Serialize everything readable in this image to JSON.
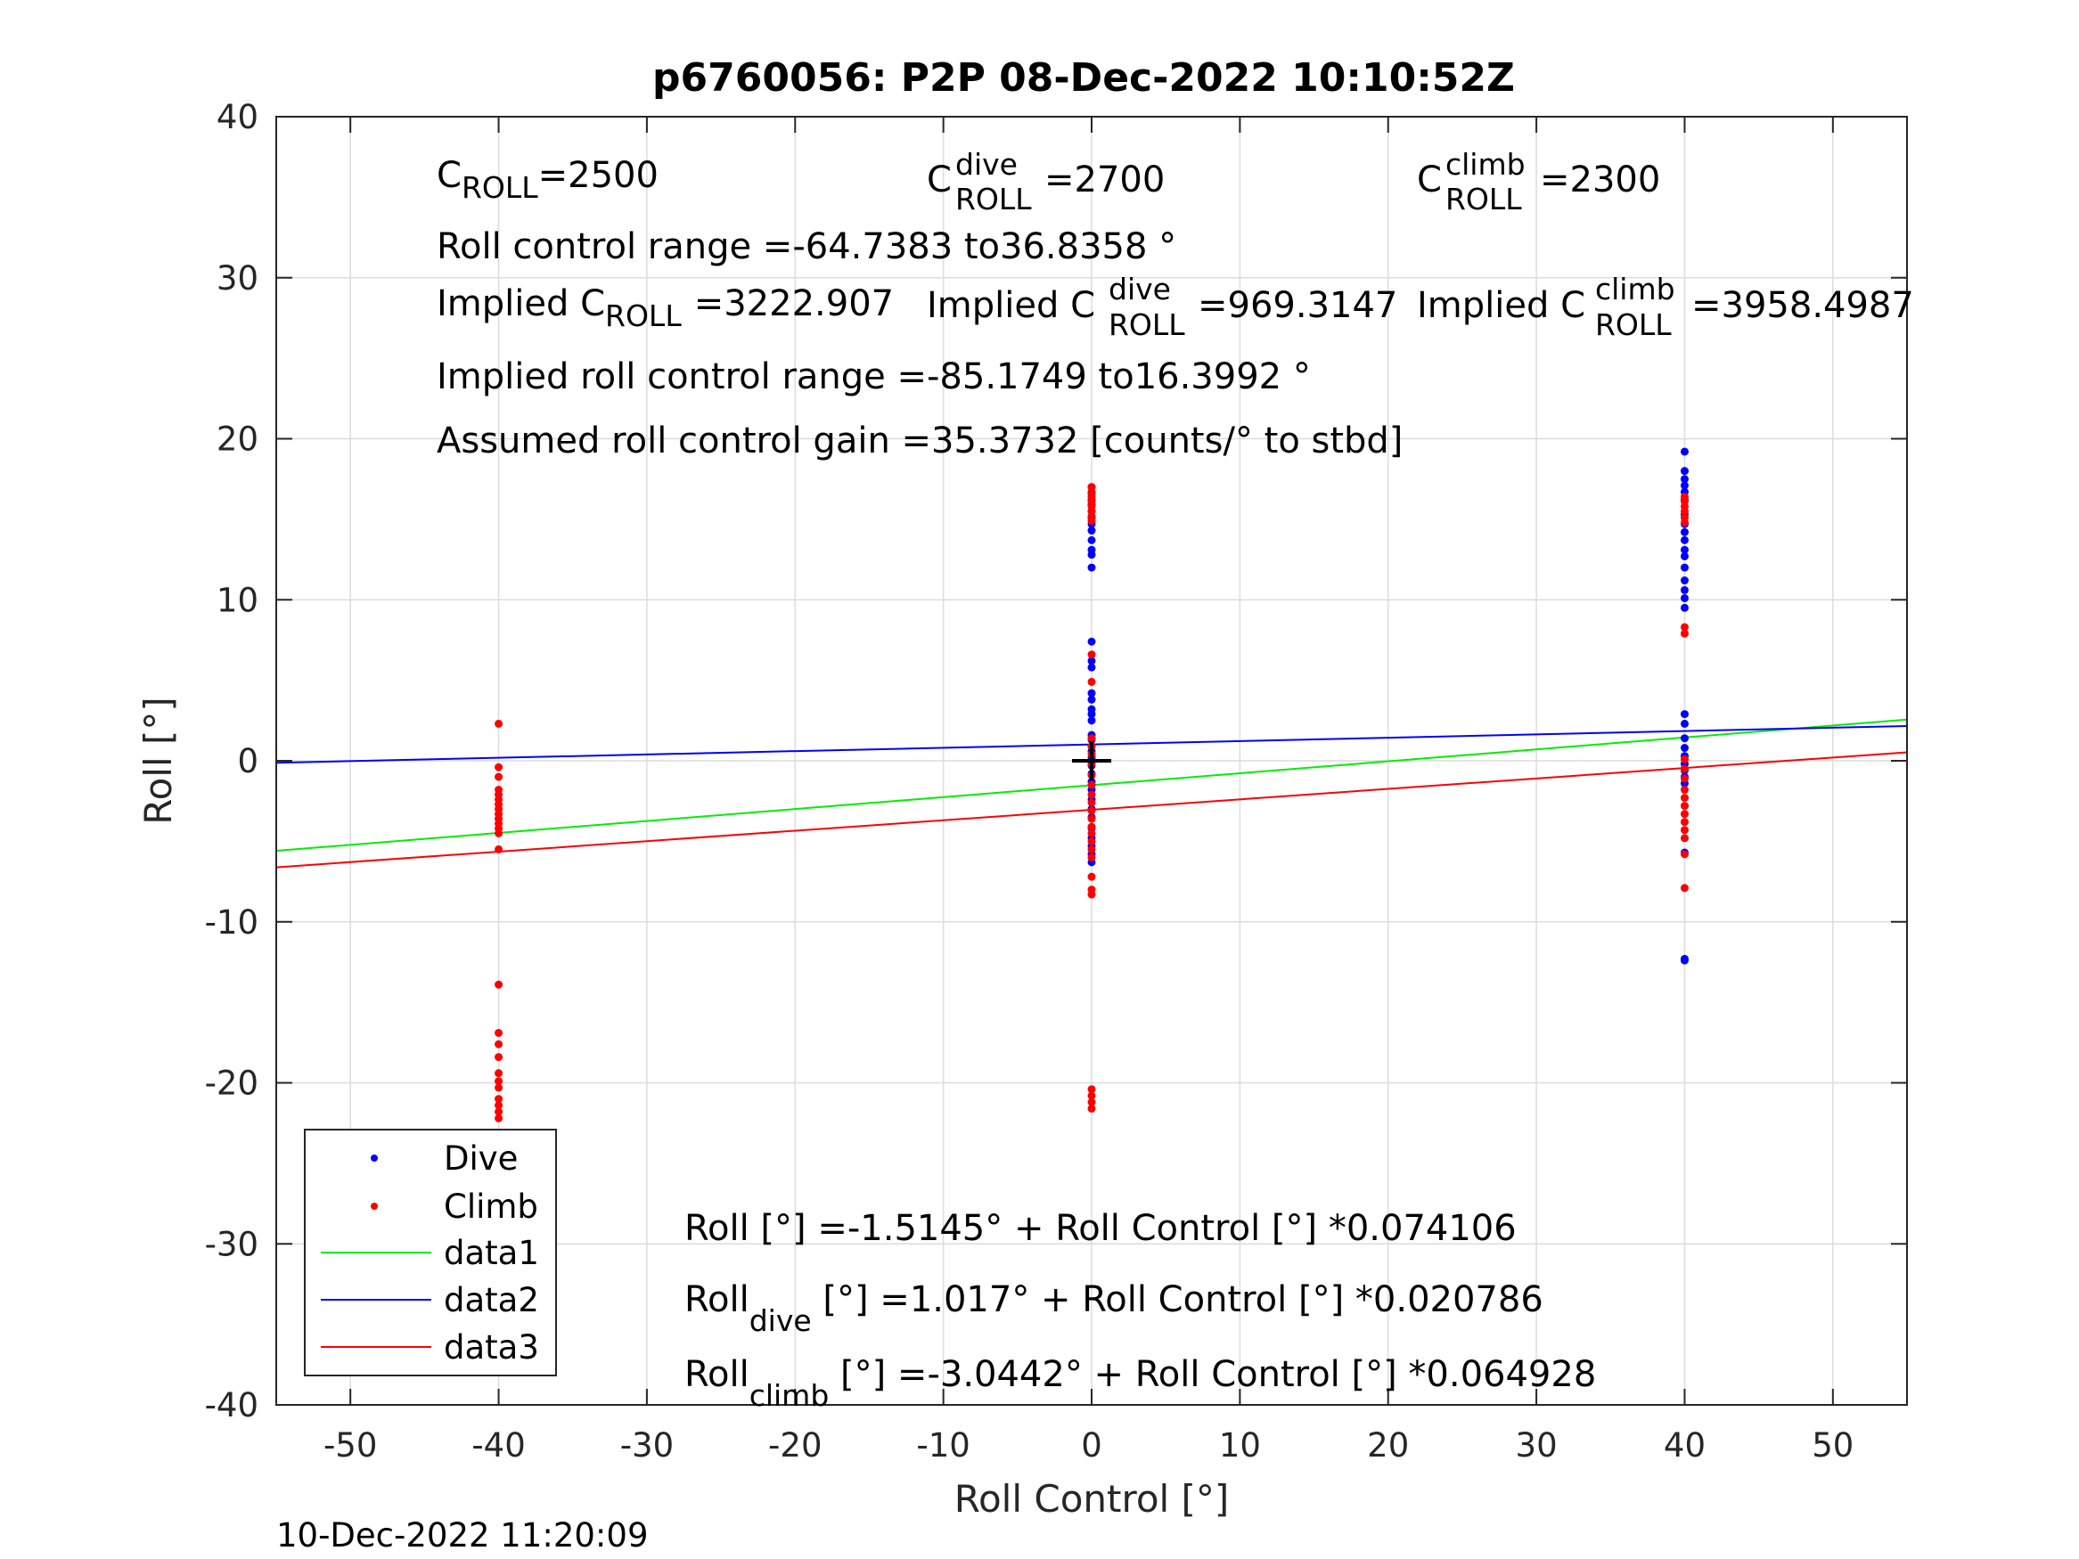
{
  "chart_data": {
    "type": "scatter",
    "title": "p6760056: P2P 08-Dec-2022 10:10:52Z",
    "xlabel": "Roll Control [°]",
    "ylabel": "Roll [°]",
    "xlim": [
      -55,
      55
    ],
    "ylim": [
      -40,
      40
    ],
    "xticks": [
      "-50",
      "-40",
      "-30",
      "-20",
      "-10",
      "0",
      "10",
      "20",
      "30",
      "40",
      "50"
    ],
    "yticks": [
      "40",
      "30",
      "20",
      "10",
      "0",
      "-10",
      "-20",
      "-30",
      "-40"
    ],
    "grid": true,
    "legend_position": "bottom-left",
    "timestamp": "10-Dec-2022 11:20:09",
    "series": [
      {
        "name": "Dive",
        "kind": "points",
        "color": "#0000ff",
        "points": [
          [
            0,
            17.0
          ],
          [
            0,
            16.6
          ],
          [
            0,
            16.2
          ],
          [
            0,
            15.9
          ],
          [
            0,
            15.5
          ],
          [
            0,
            15.1
          ],
          [
            0,
            14.7
          ],
          [
            0,
            14.3
          ],
          [
            0,
            13.7
          ],
          [
            0,
            13.1
          ],
          [
            0,
            12.8
          ],
          [
            0,
            12.0
          ],
          [
            0,
            7.4
          ],
          [
            0,
            6.2
          ],
          [
            0,
            5.8
          ],
          [
            0,
            4.2
          ],
          [
            0,
            3.8
          ],
          [
            0,
            3.2
          ],
          [
            0,
            2.9
          ],
          [
            0,
            2.5
          ],
          [
            0,
            1.6
          ],
          [
            0,
            1.3
          ],
          [
            0,
            0.9
          ],
          [
            0,
            0.6
          ],
          [
            0,
            0.2
          ],
          [
            0,
            -0.3
          ],
          [
            0,
            -0.8
          ],
          [
            0,
            -1.3
          ],
          [
            0,
            -1.8
          ],
          [
            0,
            -2.4
          ],
          [
            0,
            -3.0
          ],
          [
            0,
            -3.5
          ],
          [
            0,
            -4.2
          ],
          [
            0,
            -4.8
          ],
          [
            0,
            -5.3
          ],
          [
            0,
            -5.8
          ],
          [
            0,
            -6.3
          ],
          [
            40,
            19.2
          ],
          [
            40,
            18.0
          ],
          [
            40,
            17.5
          ],
          [
            40,
            17.1
          ],
          [
            40,
            16.7
          ],
          [
            40,
            16.2
          ],
          [
            40,
            15.3
          ],
          [
            40,
            14.7
          ],
          [
            40,
            14.2
          ],
          [
            40,
            13.7
          ],
          [
            40,
            13.1
          ],
          [
            40,
            12.7
          ],
          [
            40,
            12.0
          ],
          [
            40,
            11.2
          ],
          [
            40,
            10.6
          ],
          [
            40,
            10.1
          ],
          [
            40,
            9.5
          ],
          [
            40,
            2.9
          ],
          [
            40,
            2.3
          ],
          [
            40,
            1.4
          ],
          [
            40,
            0.8
          ],
          [
            40,
            0.3
          ],
          [
            40,
            -0.2
          ],
          [
            40,
            -0.6
          ],
          [
            40,
            -1.0
          ],
          [
            40,
            -1.4
          ],
          [
            40,
            -5.7
          ],
          [
            40,
            -12.3
          ],
          [
            40,
            -12.4
          ]
        ]
      },
      {
        "name": "Climb",
        "kind": "points",
        "color": "#ff0000",
        "points": [
          [
            -40,
            2.3
          ],
          [
            -40,
            -0.4
          ],
          [
            -40,
            -1.0
          ],
          [
            -40,
            -1.8
          ],
          [
            -40,
            -2.1
          ],
          [
            -40,
            -2.4
          ],
          [
            -40,
            -2.7
          ],
          [
            -40,
            -3.0
          ],
          [
            -40,
            -3.3
          ],
          [
            -40,
            -3.6
          ],
          [
            -40,
            -3.9
          ],
          [
            -40,
            -4.2
          ],
          [
            -40,
            -4.5
          ],
          [
            -40,
            -5.5
          ],
          [
            -40,
            -13.9
          ],
          [
            -40,
            -16.9
          ],
          [
            -40,
            -17.6
          ],
          [
            -40,
            -18.4
          ],
          [
            -40,
            -19.4
          ],
          [
            -40,
            -19.9
          ],
          [
            -40,
            -20.3
          ],
          [
            -40,
            -21.0
          ],
          [
            -40,
            -21.4
          ],
          [
            -40,
            -21.8
          ],
          [
            -40,
            -22.2
          ],
          [
            0,
            17.0
          ],
          [
            0,
            16.7
          ],
          [
            0,
            16.4
          ],
          [
            0,
            16.1
          ],
          [
            0,
            15.8
          ],
          [
            0,
            15.5
          ],
          [
            0,
            15.2
          ],
          [
            0,
            14.9
          ],
          [
            0,
            6.6
          ],
          [
            0,
            4.9
          ],
          [
            0,
            1.4
          ],
          [
            0,
            0.9
          ],
          [
            0,
            0.4
          ],
          [
            0,
            -0.2
          ],
          [
            0,
            -0.9
          ],
          [
            0,
            -1.5
          ],
          [
            0,
            -2.1
          ],
          [
            0,
            -2.6
          ],
          [
            0,
            -3.1
          ],
          [
            0,
            -3.6
          ],
          [
            0,
            -4.1
          ],
          [
            0,
            -4.5
          ],
          [
            0,
            -5.0
          ],
          [
            0,
            -5.5
          ],
          [
            0,
            -6.0
          ],
          [
            0,
            -7.2
          ],
          [
            0,
            -8.0
          ],
          [
            0,
            -8.3
          ],
          [
            0,
            -20.4
          ],
          [
            0,
            -20.8
          ],
          [
            0,
            -21.2
          ],
          [
            0,
            -21.6
          ],
          [
            40,
            16.4
          ],
          [
            40,
            16.1
          ],
          [
            40,
            15.8
          ],
          [
            40,
            15.5
          ],
          [
            40,
            15.1
          ],
          [
            40,
            14.8
          ],
          [
            40,
            8.3
          ],
          [
            40,
            7.9
          ],
          [
            40,
            0.1
          ],
          [
            40,
            -0.5
          ],
          [
            40,
            -1.1
          ],
          [
            40,
            -1.8
          ],
          [
            40,
            -2.3
          ],
          [
            40,
            -2.8
          ],
          [
            40,
            -3.3
          ],
          [
            40,
            -3.8
          ],
          [
            40,
            -4.3
          ],
          [
            40,
            -4.8
          ],
          [
            40,
            -5.8
          ],
          [
            40,
            -7.9
          ]
        ]
      },
      {
        "name": "data1",
        "kind": "line",
        "color": "#00ee00",
        "intercept": -1.5145,
        "slope": 0.074106
      },
      {
        "name": "data2",
        "kind": "line",
        "color": "#0000ff",
        "intercept": 1.017,
        "slope": 0.020786
      },
      {
        "name": "data3",
        "kind": "line",
        "color": "#ff0000",
        "intercept": -3.0442,
        "slope": 0.064928
      }
    ],
    "marker": {
      "type": "cross",
      "x": 0,
      "y": 0,
      "color": "#000000"
    },
    "annotations": {
      "c_roll": {
        "base": "C",
        "sub": "ROLL",
        "value": "=2500"
      },
      "c_roll_dive": {
        "base": "C",
        "sub": "ROLL",
        "sup": "dive",
        "value": "=2700"
      },
      "c_roll_climb": {
        "base": "C",
        "sub": "ROLL",
        "sup": "climb",
        "value": "=2300"
      },
      "roll_control_range": "Roll control range =-64.7383 to36.8358 °",
      "implied_c_roll": {
        "prefix": "Implied C",
        "sub": "ROLL",
        "value": "=3222.907"
      },
      "implied_c_roll_dive": {
        "prefix": "Implied C",
        "sub": "ROLL",
        "sup": "dive",
        "value": "=969.3147"
      },
      "implied_c_roll_climb": {
        "prefix": "Implied C",
        "sub": "ROLL",
        "sup": "climb",
        "value": "=3958.4987"
      },
      "implied_range": "Implied roll control range =-85.1749 to16.3992 °",
      "gain": "Assumed roll control gain =35.3732 [counts/° to stbd]",
      "fit_all": "Roll [°] =-1.5145° + Roll Control [°] *0.074106",
      "fit_dive": {
        "prefix": "Roll",
        "sub": "dive",
        "rest": " [°] =1.017° + Roll Control [°] *0.020786"
      },
      "fit_climb": {
        "prefix": "Roll",
        "sub": "climb",
        "rest": " [°] =-3.0442° + Roll Control [°] *0.064928"
      }
    }
  }
}
